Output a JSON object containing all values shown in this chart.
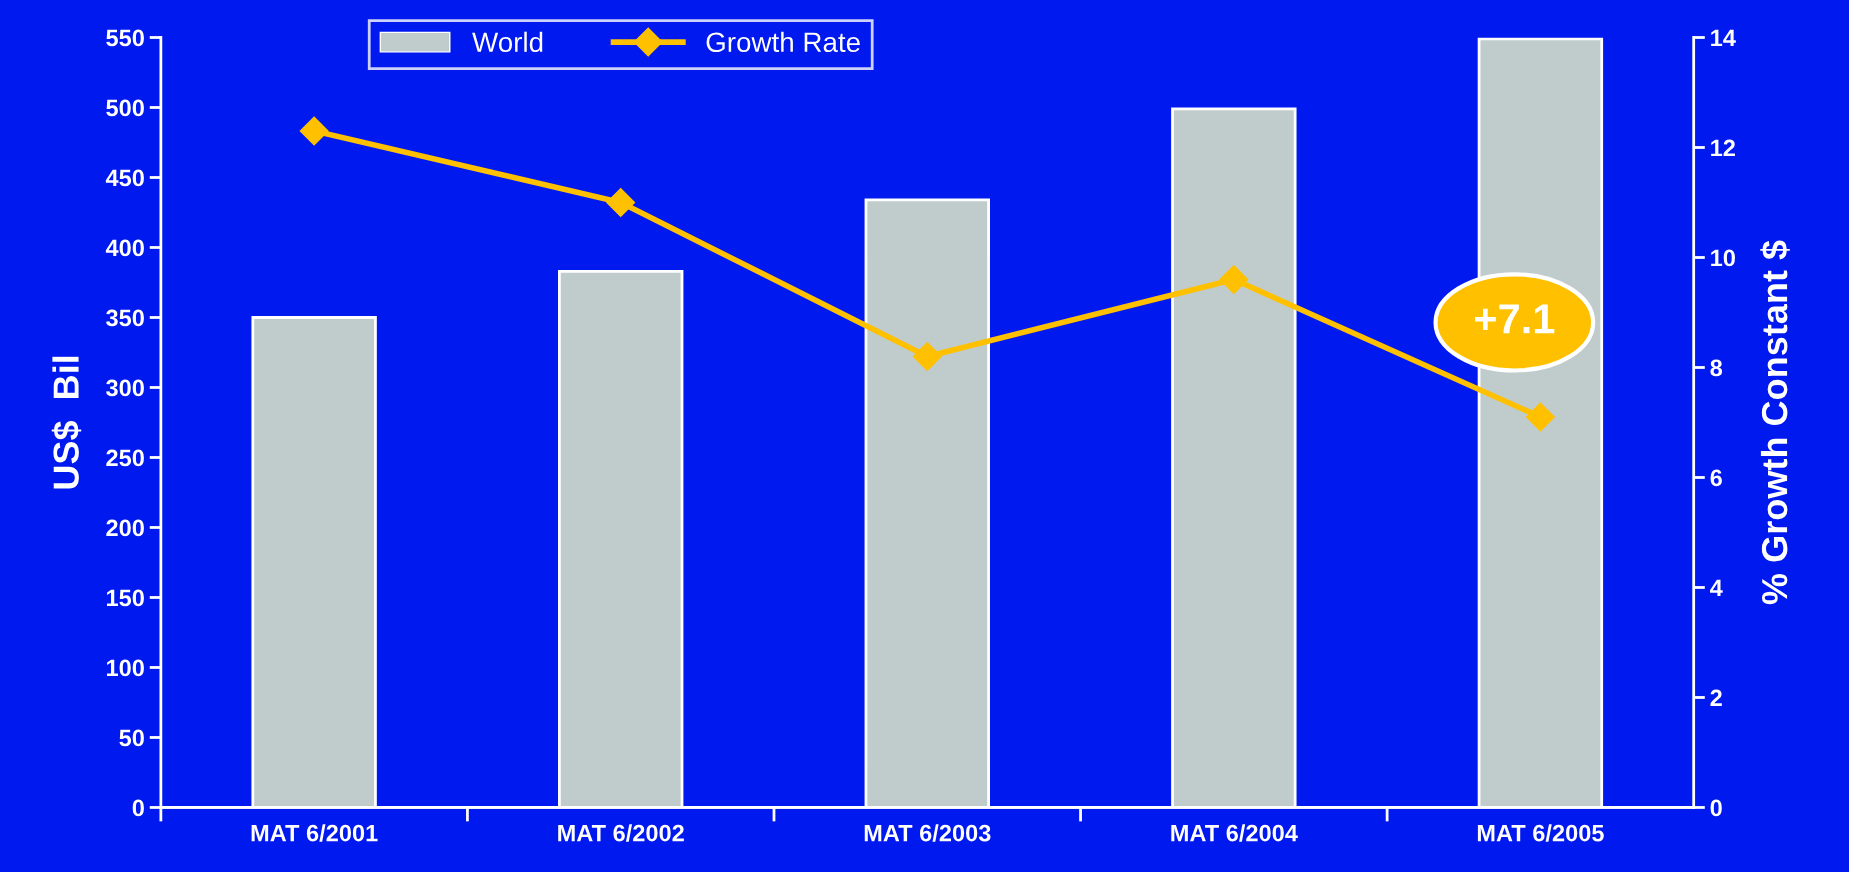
{
  "chart_data": {
    "type": "bar",
    "categories": [
      "MAT 6/2001",
      "MAT 6/2002",
      "MAT 6/2003",
      "MAT 6/2004",
      "MAT 6/2005"
    ],
    "series": [
      {
        "name": "World",
        "color": "#c0cccc",
        "values": [
          350,
          383,
          434,
          499,
          549
        ]
      },
      {
        "name": "Growth Rate",
        "type": "line",
        "axis": "y2",
        "color": "#ffc000",
        "marker": "diamond",
        "values": [
          12.3,
          11.0,
          8.2,
          9.6,
          7.1
        ]
      }
    ],
    "ylabel": "US$  Bil",
    "y2label": "% Growth Constant $",
    "ylim": [
      0,
      550
    ],
    "yticks": [
      0,
      50,
      100,
      150,
      200,
      250,
      300,
      350,
      400,
      450,
      500,
      550
    ],
    "y2lim": [
      0,
      14
    ],
    "y2ticks": [
      0,
      2,
      4,
      6,
      8,
      10,
      12,
      14
    ],
    "annotations": [
      "+7.1"
    ],
    "legend": "top",
    "grid": false
  }
}
